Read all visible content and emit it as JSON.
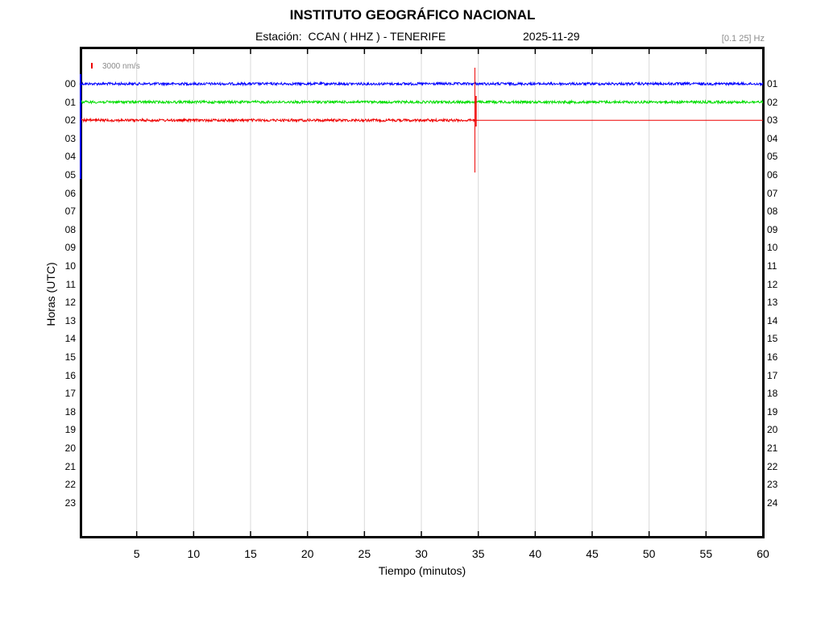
{
  "title": "INSTITUTO GEOGRÁFICO NACIONAL",
  "subtitle": {
    "station": "Estación:  CCAN ( HHZ ) - TENERIFE",
    "date": "2025-11-29"
  },
  "filter_label": "[0.1 25] Hz",
  "colors": {
    "trace_00": "#0000ff",
    "trace_01": "#00dd00",
    "trace_02": "#ee0000",
    "grid": "#d9d9d9",
    "scale_bar": "#ee0000"
  },
  "chart_data": {
    "type": "line",
    "title": "INSTITUTO GEOGRÁFICO NACIONAL",
    "xlabel": "Tiempo (minutos)",
    "ylabel": "Horas (UTC)",
    "xlim": [
      0,
      60
    ],
    "x_ticks": [
      "5",
      "10",
      "15",
      "20",
      "25",
      "30",
      "35",
      "40",
      "45",
      "50",
      "55",
      "60"
    ],
    "y_ticks_left": [
      "00",
      "01",
      "02",
      "03",
      "04",
      "05",
      "06",
      "07",
      "08",
      "09",
      "10",
      "11",
      "12",
      "13",
      "14",
      "15",
      "16",
      "17",
      "18",
      "19",
      "20",
      "21",
      "22",
      "23"
    ],
    "y_ticks_right": [
      "01",
      "02",
      "03",
      "04",
      "05",
      "06",
      "07",
      "08",
      "09",
      "10",
      "11",
      "12",
      "13",
      "14",
      "15",
      "16",
      "17",
      "18",
      "19",
      "20",
      "21",
      "22",
      "23",
      "24"
    ],
    "scale": "3000 nm/s",
    "grid": "vertical",
    "series": [
      {
        "hour": "00",
        "x_start": 0,
        "x_end": 60,
        "color_key": "trace_00"
      },
      {
        "hour": "01",
        "x_start": 0,
        "x_end": 60,
        "color_key": "trace_01"
      },
      {
        "hour": "02",
        "x_start": 0,
        "x_end": 34.7,
        "color_key": "trace_02",
        "event": {
          "minute": 34.7
        }
      }
    ]
  }
}
